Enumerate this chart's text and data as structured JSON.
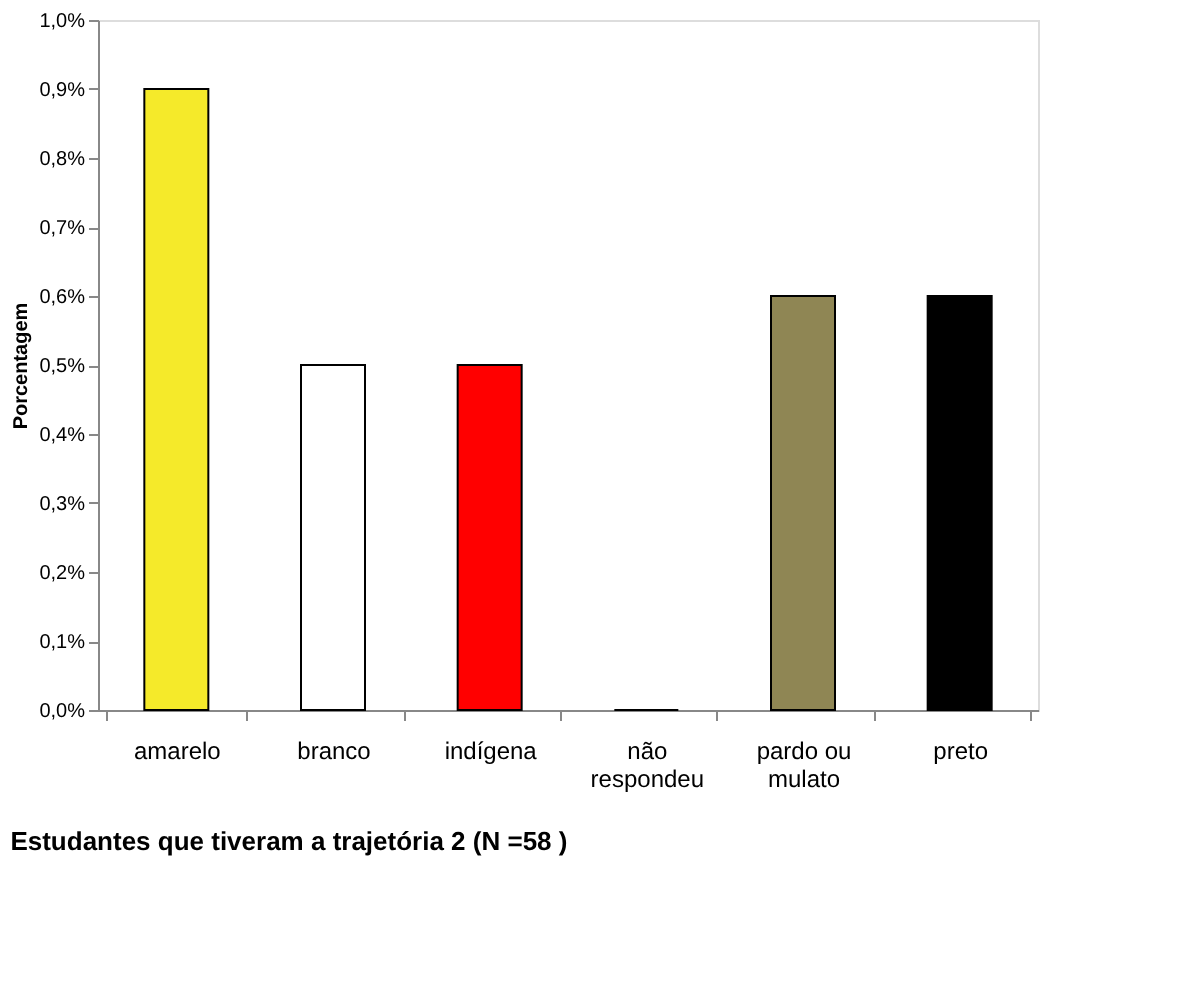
{
  "chart_data": {
    "type": "bar",
    "ylabel": "Porcentagem",
    "categories": [
      "amarelo",
      "branco",
      "indígena",
      "não respondeu",
      "pardo ou mulato",
      "preto"
    ],
    "values": [
      0.9,
      0.5,
      0.5,
      0,
      0.6,
      0.6
    ],
    "colors": [
      "#f5ea2a",
      "#ffffff",
      "#ff0000",
      null,
      "#8f8654",
      "#000000"
    ],
    "ylim": [
      0,
      1.0
    ],
    "yticks": [
      {
        "value": 0,
        "label": "0,0%"
      },
      {
        "value": 0.1,
        "label": "0,1%"
      },
      {
        "value": 0.2,
        "label": "0,2%"
      },
      {
        "value": 0.3,
        "label": "0,3%"
      },
      {
        "value": 0.4,
        "label": "0,4%"
      },
      {
        "value": 0.5,
        "label": "0,5%"
      },
      {
        "value": 0.6,
        "label": "0,6%"
      },
      {
        "value": 0.7,
        "label": "0,7%"
      },
      {
        "value": 0.8,
        "label": "0,8%"
      },
      {
        "value": 0.9,
        "label": "0,9%"
      },
      {
        "value": 1.0,
        "label": "1,0%"
      }
    ],
    "grid": false,
    "legend": false,
    "annotations": [
      "Estudantes que tiveram a trajetória 2      (N =58   )"
    ]
  }
}
